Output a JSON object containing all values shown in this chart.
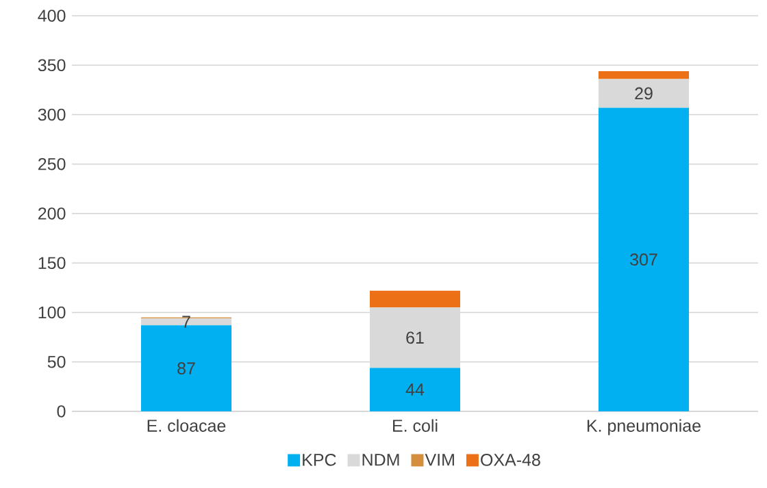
{
  "chart_data": {
    "type": "bar",
    "stacked": true,
    "categories": [
      "E. cloacae",
      "E. coli",
      "K. pneumoniae"
    ],
    "series": [
      {
        "name": "KPC",
        "color": "#00b0f0",
        "values": [
          87,
          44,
          307
        ],
        "value_labels": [
          "87",
          "44",
          "307"
        ]
      },
      {
        "name": "NDM",
        "color": "#d9d9d9",
        "values": [
          7,
          61,
          29
        ],
        "value_labels": [
          "7",
          "61",
          "29"
        ]
      },
      {
        "name": "VIM",
        "color": "#d58f3c",
        "values": [
          1,
          0,
          0
        ]
      },
      {
        "name": "OXA-48",
        "color": "#ec7016",
        "values": [
          0,
          17,
          8
        ]
      }
    ],
    "ylim": [
      0,
      400
    ],
    "yticks": [
      0,
      50,
      100,
      150,
      200,
      250,
      300,
      350,
      400
    ],
    "grid": "y",
    "legend": "bottom"
  }
}
